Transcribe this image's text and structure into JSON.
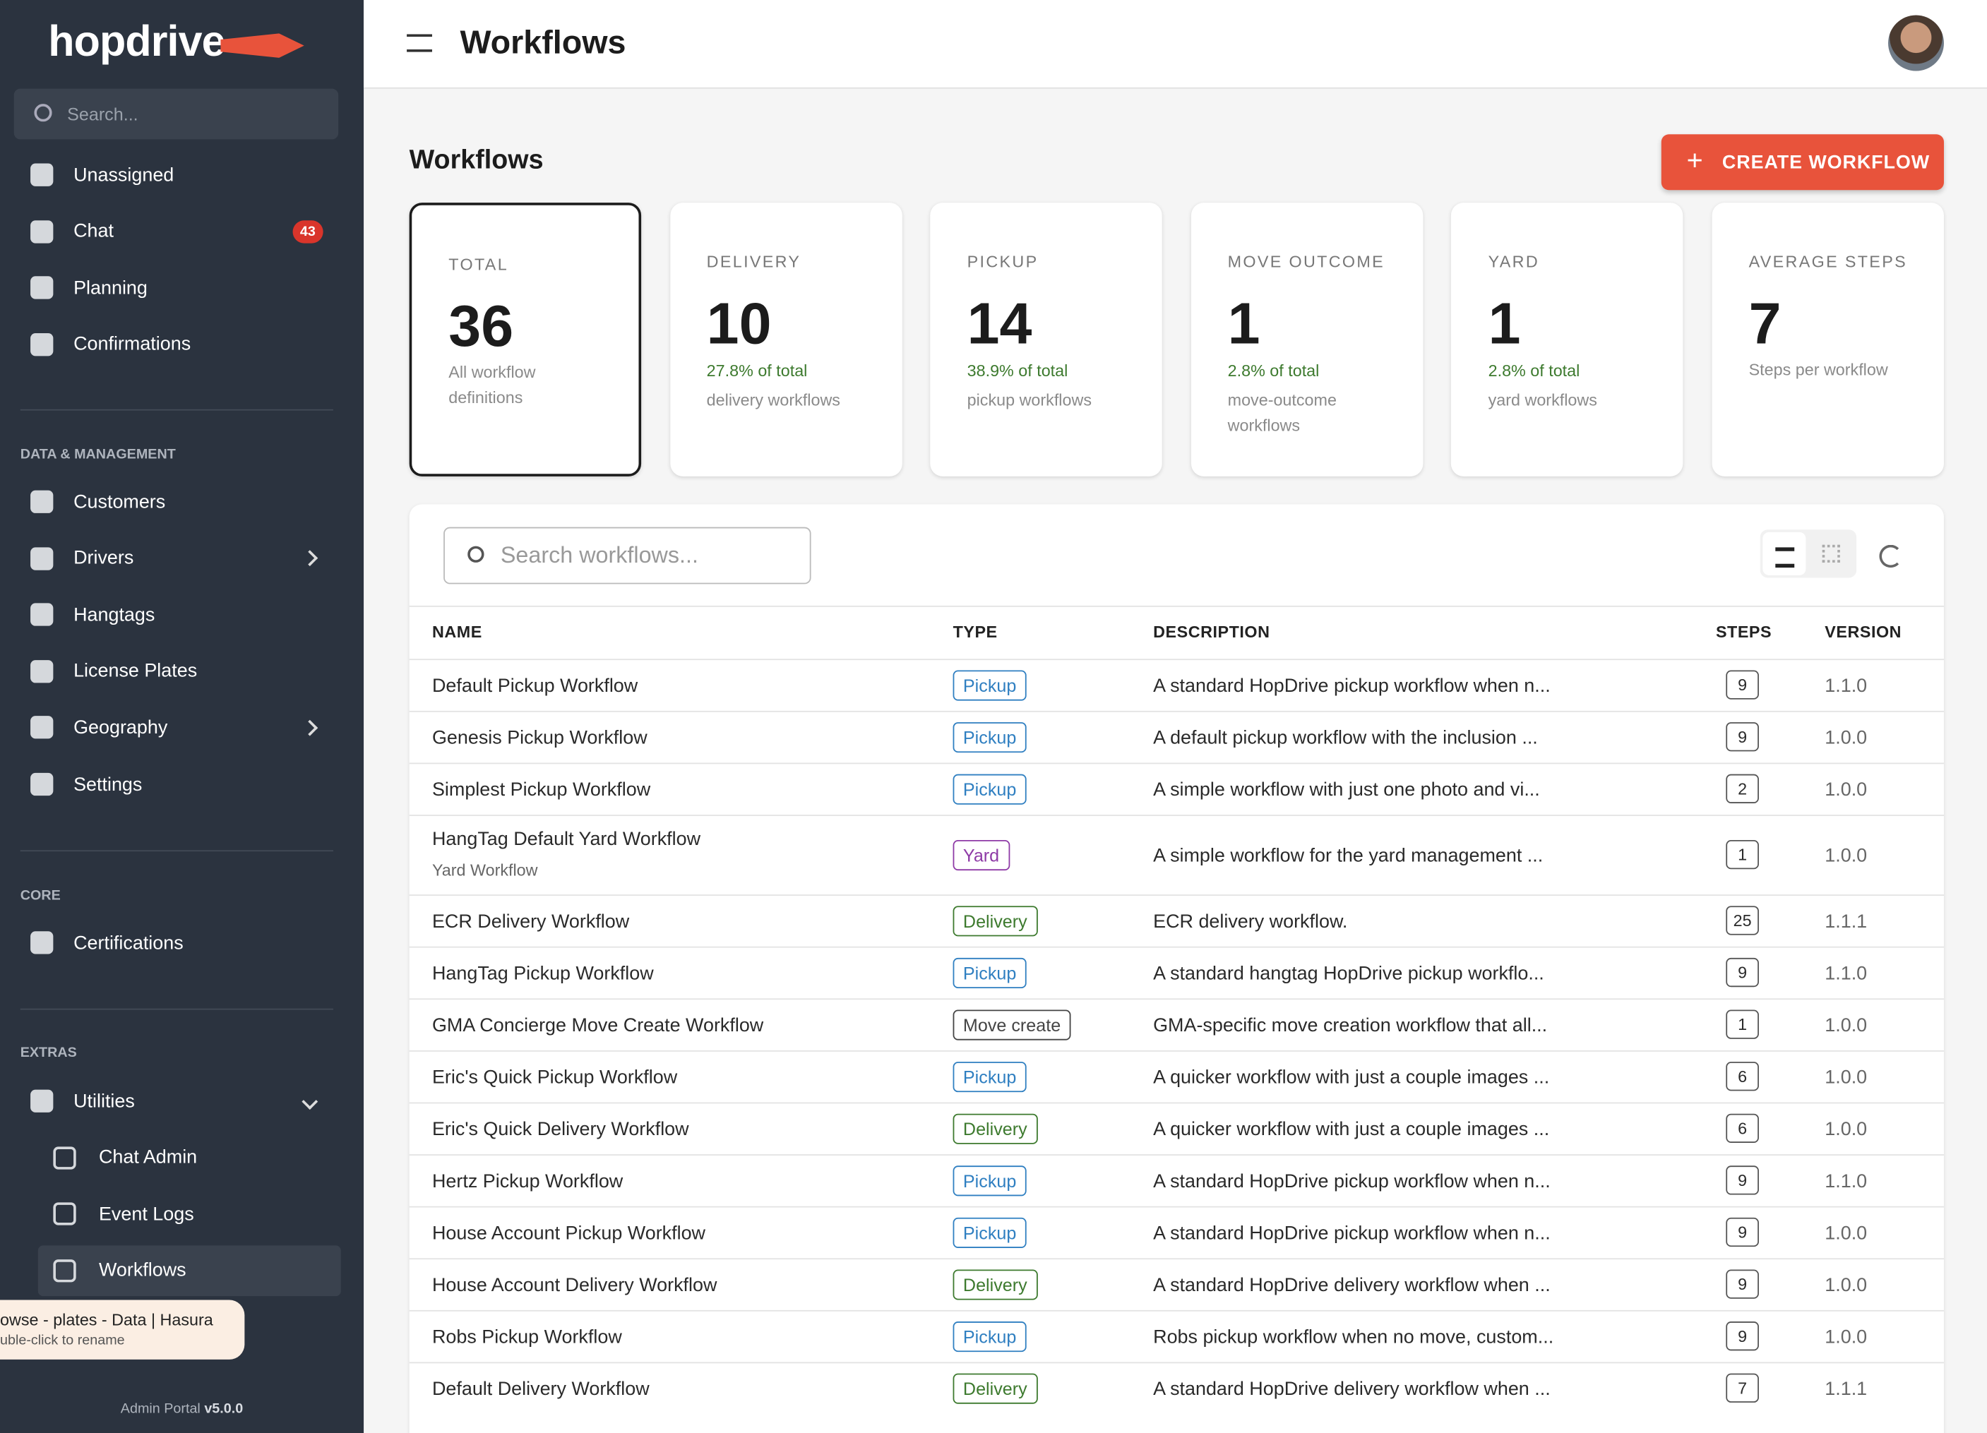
{
  "sidebar": {
    "logo": "hopdrive",
    "search_placeholder": "Search...",
    "top_items": [
      {
        "label": "Unassigned"
      },
      {
        "label": "Chat",
        "badge": "43"
      },
      {
        "label": "Planning"
      },
      {
        "label": "Confirmations"
      }
    ],
    "sections": [
      {
        "title": "DATA & MANAGEMENT",
        "items": [
          {
            "label": "Customers"
          },
          {
            "label": "Drivers"
          },
          {
            "label": "Hangtags"
          },
          {
            "label": "License Plates"
          },
          {
            "label": "Geography"
          },
          {
            "label": "Settings"
          }
        ]
      },
      {
        "title": "CORE",
        "items": [
          {
            "label": "Certifications"
          }
        ]
      },
      {
        "title": "EXTRAS",
        "items": [
          {
            "label": "Utilities"
          },
          {
            "label": "Chat Admin"
          },
          {
            "label": "Event Logs"
          },
          {
            "label": "Workflows"
          }
        ]
      }
    ],
    "footer": {
      "prefix": "Admin Portal",
      "version": "v5.0.0"
    }
  },
  "tooltip": {
    "title": "owse - plates - Data | Hasura",
    "hint": "uble-click to rename"
  },
  "header": {
    "title": "Workflows"
  },
  "page": {
    "title": "Workflows",
    "create_button": "CREATE WORKFLOW"
  },
  "stats": [
    {
      "label": "TOTAL",
      "value": 36,
      "note": "All workflow definitions"
    },
    {
      "label": "DELIVERY",
      "value": 10,
      "percent": "27.8% of total",
      "note": "delivery workflows"
    },
    {
      "label": "PICKUP",
      "value": 14,
      "percent": "38.9% of total",
      "note": "pickup workflows"
    },
    {
      "label": "MOVE OUTCOME",
      "value": 1,
      "percent": "2.8% of total",
      "note": "move-outcome workflows"
    },
    {
      "label": "YARD",
      "value": 1,
      "percent": "2.8% of total",
      "note": "yard workflows"
    },
    {
      "label": "AVERAGE STEPS",
      "value": 7,
      "note": "Steps per workflow"
    }
  ],
  "table": {
    "search_placeholder": "Search workflows...",
    "columns": [
      "NAME",
      "TYPE",
      "DESCRIPTION",
      "STEPS",
      "VERSION"
    ],
    "rows": [
      {
        "name": "Default Pickup Workflow",
        "type": "Pickup",
        "color": "#2f7fc1",
        "description": "A standard HopDrive pickup workflow when n...",
        "steps": 9,
        "version": "1.1.0"
      },
      {
        "name": "Genesis Pickup Workflow",
        "type": "Pickup",
        "color": "#2f7fc1",
        "description": "A default pickup workflow with the inclusion ...",
        "steps": 9,
        "version": "1.0.0"
      },
      {
        "name": "Simplest Pickup Workflow",
        "type": "Pickup",
        "color": "#2f7fc1",
        "description": "A simple workflow with just one photo and vi...",
        "steps": 2,
        "version": "1.0.0"
      },
      {
        "name": "HangTag Default Yard Workflow",
        "subtitle": "Yard Workflow",
        "type": "Yard",
        "color": "#8e3aa6",
        "description": "A simple workflow for the yard management ...",
        "steps": 1,
        "version": "1.0.0"
      },
      {
        "name": "ECR Delivery Workflow",
        "type": "Delivery",
        "color": "#3d7a2e",
        "description": "ECR delivery workflow.",
        "steps": 25,
        "version": "1.1.1"
      },
      {
        "name": "HangTag Pickup Workflow",
        "type": "Pickup",
        "color": "#2f7fc1",
        "description": "A standard hangtag HopDrive pickup workflo...",
        "steps": 9,
        "version": "1.1.0"
      },
      {
        "name": "GMA Concierge Move Create Workflow",
        "type": "Move create",
        "color": "#444444",
        "description": "GMA-specific move creation workflow that all...",
        "steps": 1,
        "version": "1.0.0"
      },
      {
        "name": "Eric's Quick Pickup Workflow",
        "type": "Pickup",
        "color": "#2f7fc1",
        "description": "A quicker workflow with just a couple images ...",
        "steps": 6,
        "version": "1.0.0"
      },
      {
        "name": "Eric's Quick Delivery Workflow",
        "type": "Delivery",
        "color": "#3d7a2e",
        "description": "A quicker workflow with just a couple images ...",
        "steps": 6,
        "version": "1.0.0"
      },
      {
        "name": "Hertz Pickup Workflow",
        "type": "Pickup",
        "color": "#2f7fc1",
        "description": "A standard HopDrive pickup workflow when n...",
        "steps": 9,
        "version": "1.1.0"
      },
      {
        "name": "House Account Pickup Workflow",
        "type": "Pickup",
        "color": "#2f7fc1",
        "description": "A standard HopDrive pickup workflow when n...",
        "steps": 9,
        "version": "1.0.0"
      },
      {
        "name": "House Account Delivery Workflow",
        "type": "Delivery",
        "color": "#3d7a2e",
        "description": "A standard HopDrive delivery workflow when ...",
        "steps": 9,
        "version": "1.0.0"
      },
      {
        "name": "Robs Pickup Workflow",
        "type": "Pickup",
        "color": "#2f7fc1",
        "description": "Robs pickup workflow when no move, custom...",
        "steps": 9,
        "version": "1.0.0"
      },
      {
        "name": "Default Delivery Workflow",
        "type": "Delivery",
        "color": "#3d7a2e",
        "description": "A standard HopDrive delivery workflow when ...",
        "steps": 7,
        "version": "1.1.1"
      }
    ]
  }
}
